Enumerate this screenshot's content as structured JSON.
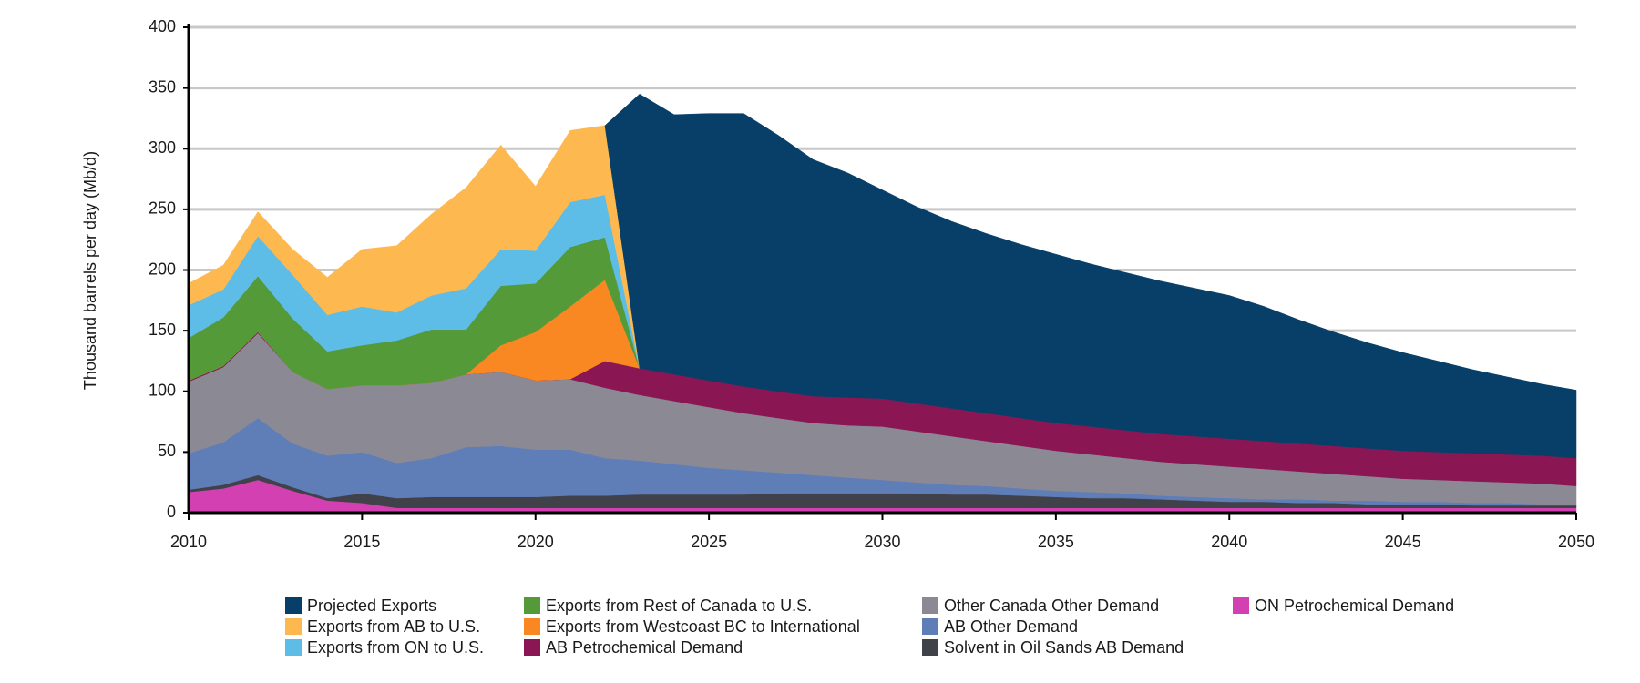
{
  "chart_data": {
    "type": "stacked_area",
    "y_label": "Thousand barrels per day (Mb/d)",
    "x": [
      2010,
      2011,
      2012,
      2013,
      2014,
      2015,
      2016,
      2017,
      2018,
      2019,
      2020,
      2021,
      2022,
      2023,
      2024,
      2025,
      2026,
      2027,
      2028,
      2029,
      2030,
      2031,
      2032,
      2033,
      2034,
      2035,
      2036,
      2037,
      2038,
      2039,
      2040,
      2041,
      2042,
      2043,
      2044,
      2045,
      2046,
      2047,
      2048,
      2049,
      2050
    ],
    "xlim": [
      2010,
      2050
    ],
    "xticks": [
      2010,
      2015,
      2020,
      2025,
      2030,
      2035,
      2040,
      2045,
      2050
    ],
    "ylim": [
      0,
      400
    ],
    "yticks": [
      0,
      50,
      100,
      150,
      200,
      250,
      300,
      350,
      400
    ],
    "grid": true,
    "series": [
      {
        "name": "Projected Exports",
        "color": "#073f69",
        "values": [
          null,
          null,
          null,
          null,
          null,
          null,
          null,
          null,
          null,
          null,
          null,
          null,
          0,
          226,
          214,
          220,
          225,
          211,
          195,
          185,
          172,
          162,
          154,
          148,
          143,
          139,
          134,
          130,
          126,
          122,
          118,
          111,
          102,
          94,
          87,
          81,
          75,
          69,
          64,
          59,
          56
        ]
      },
      {
        "name": "Exports from AB to U.S.",
        "color": "#fdb94f",
        "values": [
          18,
          20,
          20,
          21,
          31,
          47,
          55,
          67,
          83,
          86,
          53,
          59,
          57,
          0,
          null,
          null,
          null,
          null,
          null,
          null,
          null,
          null,
          null,
          null,
          null,
          null,
          null,
          null,
          null,
          null,
          null,
          null,
          null,
          null,
          null,
          null,
          null,
          null,
          null,
          null,
          null
        ]
      },
      {
        "name": "Exports from ON to U.S.",
        "color": "#5dbde6",
        "values": [
          27,
          23,
          33,
          36,
          30,
          32,
          23,
          28,
          34,
          30,
          27,
          37,
          35,
          0,
          null,
          null,
          null,
          null,
          null,
          null,
          null,
          null,
          null,
          null,
          null,
          null,
          null,
          null,
          null,
          null,
          null,
          null,
          null,
          null,
          null,
          null,
          null,
          null,
          null,
          null,
          null
        ]
      },
      {
        "name": "Exports from Rest of Canada to U.S.",
        "color": "#549a39",
        "values": [
          35,
          40,
          46,
          44,
          31,
          33,
          37,
          44,
          37,
          49,
          40,
          49,
          35,
          0,
          null,
          null,
          null,
          null,
          null,
          null,
          null,
          null,
          null,
          null,
          null,
          null,
          null,
          null,
          null,
          null,
          null,
          null,
          null,
          null,
          null,
          null,
          null,
          null,
          null,
          null,
          null
        ]
      },
      {
        "name": "Exports from Westcoast BC to International",
        "color": "#f98722",
        "values": [
          0,
          0,
          0,
          0,
          0,
          0,
          0,
          0,
          0,
          22,
          40,
          60,
          67,
          0,
          null,
          null,
          null,
          null,
          null,
          null,
          null,
          null,
          null,
          null,
          null,
          null,
          null,
          null,
          null,
          null,
          null,
          null,
          null,
          null,
          null,
          null,
          null,
          null,
          null,
          null,
          null
        ]
      },
      {
        "name": "AB Petrochemical Demand",
        "color": "#8b1654",
        "values": [
          1,
          1,
          1,
          0,
          0,
          0,
          0,
          0,
          0,
          0,
          0,
          0,
          22,
          22,
          22,
          22,
          22,
          22,
          22,
          23,
          23,
          23,
          23,
          23,
          23,
          23,
          23,
          23,
          23,
          23,
          23,
          23,
          23,
          23,
          23,
          23,
          23,
          23,
          23,
          23,
          23
        ]
      },
      {
        "name": "Other Canada Other Demand",
        "color": "#8b8a94",
        "values": [
          59,
          62,
          70,
          59,
          55,
          55,
          64,
          62,
          60,
          61,
          57,
          58,
          58,
          54,
          52,
          50,
          47,
          45,
          43,
          43,
          44,
          42,
          40,
          37,
          35,
          33,
          31,
          29,
          28,
          27,
          26,
          25,
          23,
          22,
          20,
          19,
          18,
          18,
          17,
          17,
          15
        ]
      },
      {
        "name": "AB Other Demand",
        "color": "#5f7db6",
        "values": [
          30,
          35,
          47,
          36,
          35,
          34,
          29,
          32,
          41,
          42,
          39,
          38,
          31,
          28,
          25,
          22,
          20,
          17,
          15,
          13,
          11,
          9,
          8,
          7,
          6,
          5,
          5,
          4,
          3,
          3,
          3,
          2,
          3,
          2,
          3,
          2,
          2,
          2,
          2,
          1,
          1
        ]
      },
      {
        "name": "Solvent in Oil Sands AB Demand",
        "color": "#414149",
        "values": [
          2,
          3,
          4,
          3,
          2,
          8,
          8,
          9,
          9,
          9,
          9,
          10,
          10,
          11,
          11,
          11,
          11,
          12,
          12,
          12,
          12,
          12,
          11,
          11,
          10,
          9,
          8,
          8,
          7,
          6,
          5,
          5,
          4,
          4,
          3,
          3,
          3,
          2,
          2,
          2,
          2
        ]
      },
      {
        "name": "ON Petrochemical Demand",
        "color": "#d240b1",
        "values": [
          17,
          20,
          27,
          18,
          10,
          8,
          4,
          4,
          4,
          4,
          4,
          4,
          4,
          4,
          4,
          4,
          4,
          4,
          4,
          4,
          4,
          4,
          4,
          4,
          4,
          4,
          4,
          4,
          4,
          4,
          4,
          4,
          4,
          4,
          4,
          4,
          4,
          4,
          4,
          4,
          4
        ]
      }
    ]
  }
}
